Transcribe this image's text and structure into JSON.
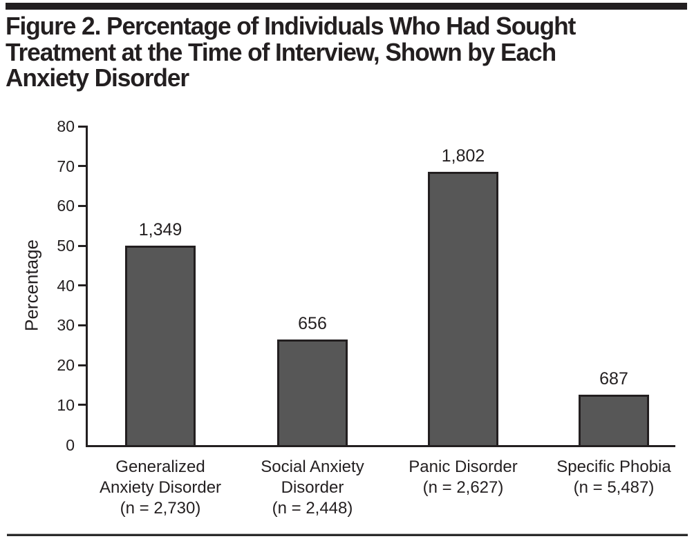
{
  "header": {
    "title_lines": [
      "Figure 2. Percentage of Individuals Who Had Sought",
      "Treatment at the Time of Interview, Shown by Each",
      "Anxiety Disorder"
    ],
    "title_full": "Figure 2. Percentage of Individuals Who Had Sought Treatment at the Time of Interview, Shown by Each Anxiety Disorder"
  },
  "chart_data": {
    "type": "bar",
    "title": "Figure 2. Percentage of Individuals Who Had Sought Treatment at the Time of Interview, Shown by Each Anxiety Disorder",
    "xlabel": "",
    "ylabel": "Percentage",
    "ylim": [
      0,
      80
    ],
    "yticks": [
      0,
      10,
      20,
      30,
      40,
      50,
      60,
      70,
      80
    ],
    "grid": "off",
    "legend": "none",
    "categories": [
      "Generalized Anxiety Disorder (n = 2,730)",
      "Social Anxiety Disorder (n = 2,448)",
      "Panic Disorder (n = 2,627)",
      "Specific Phobia (n = 5,487)"
    ],
    "category_label_lines": [
      [
        "Generalized",
        "Anxiety Disorder",
        "(n = 2,730)"
      ],
      [
        "Social Anxiety",
        "Disorder",
        "(n = 2,448)"
      ],
      [
        "Panic Disorder",
        "(n = 2,627)"
      ],
      [
        "Specific Phobia",
        "(n = 5,487)"
      ]
    ],
    "sample_sizes": [
      "2,730",
      "2,448",
      "2,627",
      "5,487"
    ],
    "bar_count_labels": [
      "1,349",
      "656",
      "1,802",
      "687"
    ],
    "values_percent": [
      50,
      26.5,
      68.5,
      12.5
    ],
    "bar_fill_color": "#575757",
    "bar_border_color": "#231f20",
    "axis_color": "#231f20",
    "text_color": "#231f20"
  }
}
